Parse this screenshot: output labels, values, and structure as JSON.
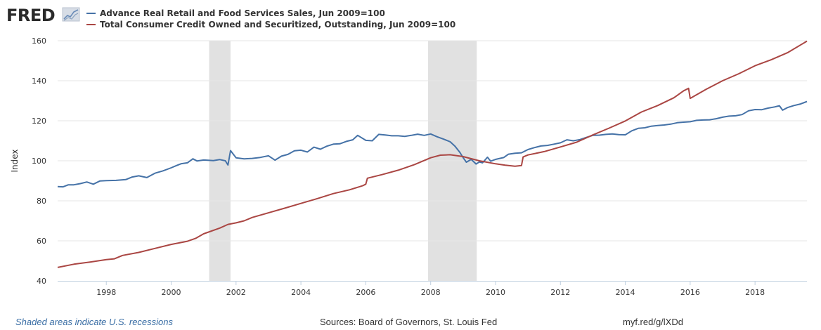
{
  "logo": {
    "text": "FRED"
  },
  "footer": {
    "note": "Shaded areas indicate U.S. recessions",
    "source": "Sources: Board of Governors, St. Louis Fed",
    "link": "myf.red/g/lXDd"
  },
  "chart_data": {
    "type": "line",
    "title": "",
    "xlabel": "",
    "ylabel": "Index",
    "xlim": [
      1996.5,
      2019.6
    ],
    "ylim": [
      40,
      160
    ],
    "yticks": [
      40,
      60,
      80,
      100,
      120,
      140,
      160
    ],
    "xticks": [
      1998,
      2000,
      2002,
      2004,
      2006,
      2008,
      2010,
      2012,
      2014,
      2016,
      2018
    ],
    "grid": true,
    "legend": "top-left",
    "recessions": [
      [
        2001.17,
        2001.83
      ],
      [
        2007.92,
        2009.42
      ]
    ],
    "series": [
      {
        "name": "Advance Real Retail and Food Services Sales, Jun 2009=100",
        "color": "#4572a7",
        "points": [
          [
            1996.5,
            87.1
          ],
          [
            1996.67,
            87.0
          ],
          [
            1996.83,
            88.0
          ],
          [
            1997.0,
            88.0
          ],
          [
            1997.2,
            88.6
          ],
          [
            1997.4,
            89.4
          ],
          [
            1997.6,
            88.3
          ],
          [
            1997.8,
            89.9
          ],
          [
            1998.0,
            90.1
          ],
          [
            1998.3,
            90.2
          ],
          [
            1998.6,
            90.6
          ],
          [
            1998.8,
            91.9
          ],
          [
            1999.0,
            92.5
          ],
          [
            1999.25,
            91.6
          ],
          [
            1999.5,
            93.8
          ],
          [
            1999.75,
            95.0
          ],
          [
            2000.0,
            96.5
          ],
          [
            2000.15,
            97.5
          ],
          [
            2000.3,
            98.5
          ],
          [
            2000.5,
            99.0
          ],
          [
            2000.67,
            101.0
          ],
          [
            2000.8,
            99.9
          ],
          [
            2001.0,
            100.4
          ],
          [
            2001.1,
            100.3
          ],
          [
            2001.3,
            100.1
          ],
          [
            2001.5,
            100.6
          ],
          [
            2001.67,
            100.0
          ],
          [
            2001.75,
            97.9
          ],
          [
            2001.83,
            105.1
          ],
          [
            2002.0,
            101.5
          ],
          [
            2002.25,
            101.0
          ],
          [
            2002.5,
            101.2
          ],
          [
            2002.75,
            101.7
          ],
          [
            2003.0,
            102.5
          ],
          [
            2003.2,
            100.3
          ],
          [
            2003.4,
            102.3
          ],
          [
            2003.6,
            103.2
          ],
          [
            2003.8,
            105.0
          ],
          [
            2004.0,
            105.3
          ],
          [
            2004.2,
            104.4
          ],
          [
            2004.4,
            106.8
          ],
          [
            2004.6,
            105.8
          ],
          [
            2004.8,
            107.3
          ],
          [
            2005.0,
            108.3
          ],
          [
            2005.2,
            108.5
          ],
          [
            2005.4,
            109.7
          ],
          [
            2005.6,
            110.5
          ],
          [
            2005.75,
            112.7
          ],
          [
            2006.0,
            110.2
          ],
          [
            2006.2,
            110.0
          ],
          [
            2006.4,
            113.2
          ],
          [
            2006.6,
            112.9
          ],
          [
            2006.8,
            112.5
          ],
          [
            2007.0,
            112.5
          ],
          [
            2007.2,
            112.2
          ],
          [
            2007.4,
            112.7
          ],
          [
            2007.6,
            113.3
          ],
          [
            2007.8,
            112.7
          ],
          [
            2008.0,
            113.4
          ],
          [
            2008.2,
            112.0
          ],
          [
            2008.4,
            110.8
          ],
          [
            2008.6,
            109.5
          ],
          [
            2008.75,
            107.3
          ],
          [
            2008.9,
            104.2
          ],
          [
            2009.0,
            101.6
          ],
          [
            2009.1,
            99.3
          ],
          [
            2009.25,
            100.7
          ],
          [
            2009.4,
            98.4
          ],
          [
            2009.5,
            99.4
          ],
          [
            2009.6,
            99.0
          ],
          [
            2009.75,
            101.8
          ],
          [
            2009.85,
            99.8
          ],
          [
            2010.0,
            100.7
          ],
          [
            2010.25,
            101.6
          ],
          [
            2010.4,
            103.3
          ],
          [
            2010.6,
            103.8
          ],
          [
            2010.8,
            104.0
          ],
          [
            2011.0,
            105.6
          ],
          [
            2011.2,
            106.6
          ],
          [
            2011.4,
            107.4
          ],
          [
            2011.6,
            107.7
          ],
          [
            2011.8,
            108.3
          ],
          [
            2012.0,
            109.0
          ],
          [
            2012.2,
            110.5
          ],
          [
            2012.4,
            110.0
          ],
          [
            2012.6,
            110.6
          ],
          [
            2012.8,
            111.7
          ],
          [
            2013.0,
            112.7
          ],
          [
            2013.2,
            112.8
          ],
          [
            2013.4,
            113.2
          ],
          [
            2013.6,
            113.4
          ],
          [
            2013.8,
            113.1
          ],
          [
            2014.0,
            113.0
          ],
          [
            2014.2,
            115.0
          ],
          [
            2014.4,
            116.2
          ],
          [
            2014.6,
            116.5
          ],
          [
            2014.8,
            117.3
          ],
          [
            2015.0,
            117.6
          ],
          [
            2015.2,
            117.9
          ],
          [
            2015.4,
            118.3
          ],
          [
            2015.6,
            119.0
          ],
          [
            2015.8,
            119.3
          ],
          [
            2016.0,
            119.5
          ],
          [
            2016.2,
            120.2
          ],
          [
            2016.4,
            120.4
          ],
          [
            2016.6,
            120.5
          ],
          [
            2016.8,
            121.0
          ],
          [
            2017.0,
            121.8
          ],
          [
            2017.2,
            122.3
          ],
          [
            2017.4,
            122.5
          ],
          [
            2017.6,
            123.1
          ],
          [
            2017.8,
            125.0
          ],
          [
            2018.0,
            125.6
          ],
          [
            2018.2,
            125.5
          ],
          [
            2018.4,
            126.3
          ],
          [
            2018.6,
            126.9
          ],
          [
            2018.75,
            127.5
          ],
          [
            2018.85,
            125.3
          ],
          [
            2019.0,
            126.6
          ],
          [
            2019.2,
            127.6
          ],
          [
            2019.4,
            128.4
          ],
          [
            2019.6,
            129.6
          ]
        ]
      },
      {
        "name": "Total Consumer Credit Owned and Securitized, Outstanding, Jun 2009=100",
        "color": "#aa4643",
        "points": [
          [
            1996.5,
            46.7
          ],
          [
            1997.0,
            48.3
          ],
          [
            1997.5,
            49.4
          ],
          [
            1998.0,
            50.6
          ],
          [
            1998.25,
            51.0
          ],
          [
            1998.5,
            52.7
          ],
          [
            1999.0,
            54.2
          ],
          [
            1999.5,
            56.2
          ],
          [
            2000.0,
            58.2
          ],
          [
            2000.5,
            59.8
          ],
          [
            2000.75,
            61.2
          ],
          [
            2001.0,
            63.5
          ],
          [
            2001.5,
            66.4
          ],
          [
            2001.75,
            68.2
          ],
          [
            2002.0,
            69.0
          ],
          [
            2002.25,
            70.0
          ],
          [
            2002.5,
            71.7
          ],
          [
            2003.0,
            74.0
          ],
          [
            2003.5,
            76.3
          ],
          [
            2004.0,
            78.7
          ],
          [
            2004.5,
            81.1
          ],
          [
            2005.0,
            83.6
          ],
          [
            2005.5,
            85.5
          ],
          [
            2005.9,
            87.5
          ],
          [
            2006.0,
            88.3
          ],
          [
            2006.05,
            91.3
          ],
          [
            2006.5,
            93.1
          ],
          [
            2007.0,
            95.3
          ],
          [
            2007.5,
            98.1
          ],
          [
            2008.0,
            101.5
          ],
          [
            2008.3,
            102.8
          ],
          [
            2008.6,
            103.0
          ],
          [
            2009.0,
            102.1
          ],
          [
            2009.5,
            100.0
          ],
          [
            2010.0,
            98.5
          ],
          [
            2010.3,
            97.8
          ],
          [
            2010.6,
            97.3
          ],
          [
            2010.8,
            97.6
          ],
          [
            2010.85,
            101.9
          ],
          [
            2011.0,
            102.9
          ],
          [
            2011.5,
            104.6
          ],
          [
            2012.0,
            106.9
          ],
          [
            2012.5,
            109.3
          ],
          [
            2013.0,
            112.9
          ],
          [
            2013.5,
            116.3
          ],
          [
            2014.0,
            119.9
          ],
          [
            2014.5,
            124.4
          ],
          [
            2015.0,
            127.6
          ],
          [
            2015.5,
            131.5
          ],
          [
            2015.8,
            135.0
          ],
          [
            2015.95,
            136.2
          ],
          [
            2016.0,
            131.2
          ],
          [
            2016.5,
            135.8
          ],
          [
            2017.0,
            140.0
          ],
          [
            2017.5,
            143.5
          ],
          [
            2018.0,
            147.5
          ],
          [
            2018.5,
            150.5
          ],
          [
            2019.0,
            154.0
          ],
          [
            2019.6,
            159.8
          ]
        ]
      }
    ]
  }
}
